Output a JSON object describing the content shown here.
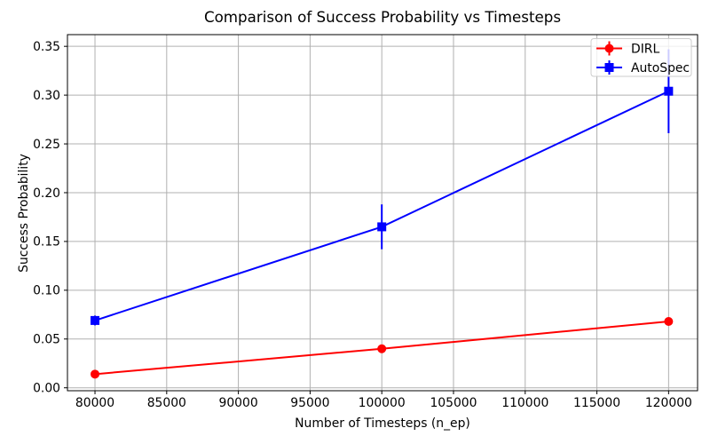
{
  "chart_data": {
    "type": "line",
    "title": "Comparison of Success Probability vs Timesteps",
    "xlabel": "Number of Timesteps (n_ep)",
    "ylabel": "Success Probability",
    "x": [
      80000,
      100000,
      120000
    ],
    "series": [
      {
        "name": "DIRL",
        "color": "#ff0000",
        "marker": "circle",
        "values": [
          0.014,
          0.04,
          0.068
        ],
        "yerr": [
          0.003,
          0.003,
          0.003
        ]
      },
      {
        "name": "AutoSpec",
        "color": "#0000ff",
        "marker": "square",
        "values": [
          0.069,
          0.165,
          0.304
        ],
        "yerr": [
          0.005,
          0.023,
          0.043
        ]
      }
    ],
    "xlim": [
      78080,
      122020
    ],
    "ylim": [
      -0.003,
      0.362
    ],
    "xticks": [
      80000,
      85000,
      90000,
      95000,
      100000,
      105000,
      110000,
      115000,
      120000
    ],
    "xtick_labels": [
      "80000",
      "85000",
      "90000",
      "95000",
      "100000",
      "105000",
      "110000",
      "115000",
      "120000"
    ],
    "yticks": [
      0.0,
      0.05,
      0.1,
      0.15,
      0.2,
      0.25,
      0.3,
      0.35
    ],
    "ytick_labels": [
      "0.00",
      "0.05",
      "0.10",
      "0.15",
      "0.20",
      "0.25",
      "0.30",
      "0.35"
    ],
    "grid": true,
    "grid_color": "#b0b0b0",
    "axis_color": "#000000",
    "background_color": "#ffffff",
    "legend": {
      "position": "upper right",
      "entries": [
        "DIRL",
        "AutoSpec"
      ],
      "border_color": "#cccccc"
    }
  }
}
